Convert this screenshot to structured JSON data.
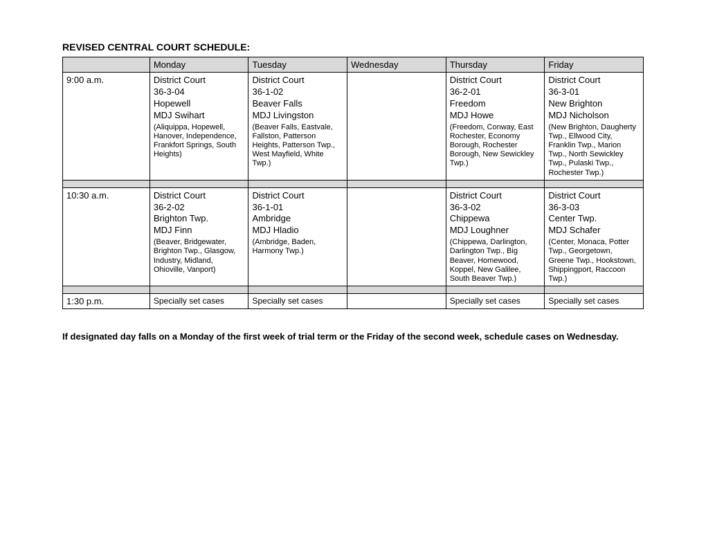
{
  "title": "REVISED CENTRAL COURT SCHEDULE:",
  "days": {
    "mon": "Monday",
    "tue": "Tuesday",
    "wed": "Wednesday",
    "thu": "Thursday",
    "fri": "Friday"
  },
  "rows": [
    {
      "time": "9:00 a.m.",
      "mon": {
        "title": "District Court",
        "code": "36-3-04",
        "place": "Hopewell",
        "judge": "MDJ Swihart",
        "detail": "(Aliquippa, Hopewell, Hanover, Independence, Frankfort Springs, South Heights)"
      },
      "tue": {
        "title": "District Court",
        "code": "36-1-02",
        "place": "Beaver Falls",
        "judge": "MDJ Livingston",
        "detail": "(Beaver Falls, Eastvale, Fallston, Patterson Heights, Patterson Twp., West Mayfield, White Twp.)"
      },
      "wed": {
        "title": "",
        "code": "",
        "place": "",
        "judge": "",
        "detail": ""
      },
      "thu": {
        "title": "District Court",
        "code": "36-2-01",
        "place": "Freedom",
        "judge": "MDJ Howe",
        "detail": "(Freedom, Conway, East Rochester, Economy Borough, Rochester Borough, New Sewickley Twp.)"
      },
      "fri": {
        "title": "District Court",
        "code": "36-3-01",
        "place": "New Brighton",
        "judge": "MDJ Nicholson",
        "detail": "(New Brighton, Daugherty Twp., Ellwood City, Franklin Twp., Marion Twp., North Sewickley Twp., Pulaski Twp., Rochester Twp.)"
      }
    },
    {
      "time": "10:30 a.m.",
      "mon": {
        "title": "District Court",
        "code": "36-2-02",
        "place": "Brighton Twp.",
        "judge": "MDJ Finn",
        "detail": "(Beaver, Bridgewater, Brighton Twp., Glasgow, Industry, Midland, Ohioville, Vanport)"
      },
      "tue": {
        "title": "District Court",
        "code": "36-1-01",
        "place": "Ambridge",
        "judge": "MDJ Hladio",
        "detail": "(Ambridge, Baden, Harmony Twp.)"
      },
      "wed": {
        "title": "",
        "code": "",
        "place": "",
        "judge": "",
        "detail": ""
      },
      "thu": {
        "title": "District Court",
        "code": "36-3-02",
        "place": "Chippewa",
        "judge": "MDJ Loughner",
        "detail": "(Chippewa, Darlington, Darlington Twp., Big Beaver, Homewood, Koppel, New Galilee, South Beaver Twp.)"
      },
      "fri": {
        "title": "District Court",
        "code": "36-3-03",
        "place": "Center Twp.",
        "judge": "MDJ Schafer",
        "detail": "(Center, Monaca, Potter Twp., Georgetown, Greene Twp., Hookstown, Shippingport, Raccoon Twp.)"
      }
    }
  ],
  "lastRow": {
    "time": "1:30 p.m.",
    "text": "Specially set cases"
  },
  "footnote": "If designated day falls on a Monday of the first week of trial term or the Friday of the second week, schedule cases on Wednesday."
}
